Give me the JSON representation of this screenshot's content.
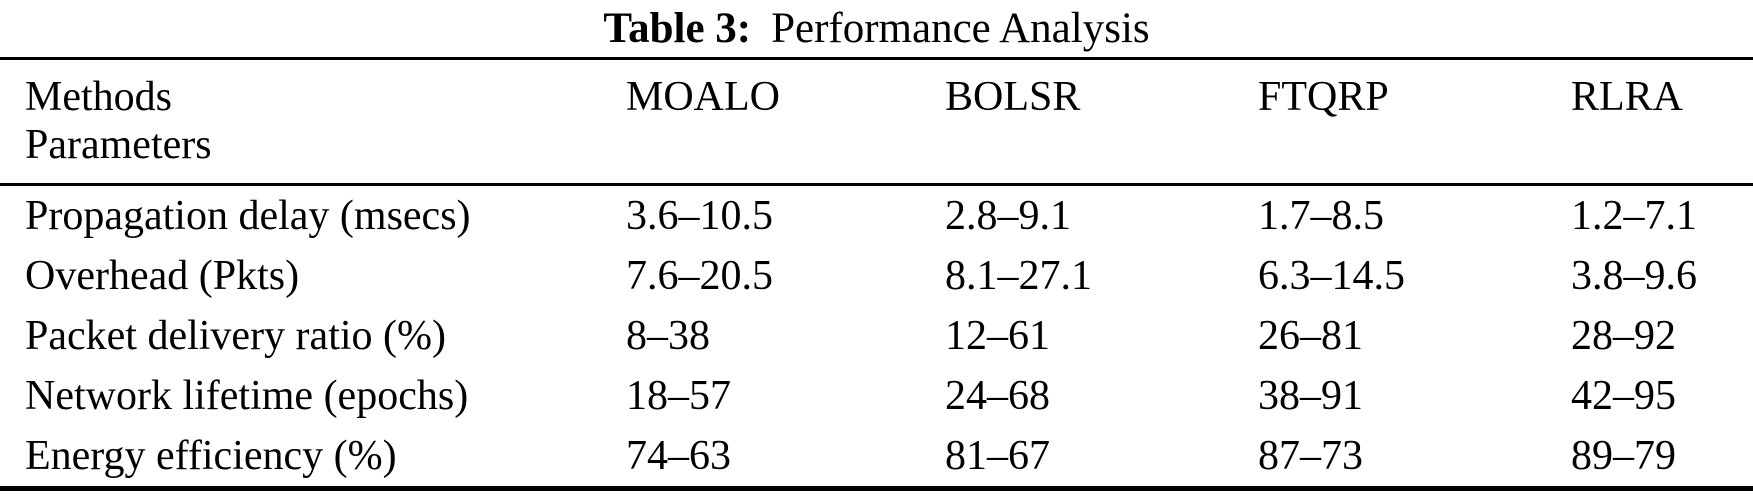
{
  "caption": {
    "label": "Table 3:",
    "title": "Performance Analysis"
  },
  "table": {
    "header": {
      "corner_line1": "Methods",
      "corner_line2": "Parameters",
      "methods": [
        "MOALO",
        "BOLSR",
        "FTQRP",
        "RLRA"
      ]
    },
    "rows": [
      {
        "parameter": "Propagation delay (msecs)",
        "values": [
          "3.6–10.5",
          "2.8–9.1",
          "1.7–8.5",
          "1.2–7.1"
        ]
      },
      {
        "parameter": "Overhead (Pkts)",
        "values": [
          "7.6–20.5",
          "8.1–27.1",
          "6.3–14.5",
          "3.8–9.6"
        ]
      },
      {
        "parameter": "Packet delivery ratio (%)",
        "values": [
          "8–38",
          "12–61",
          "26–81",
          "28–92"
        ]
      },
      {
        "parameter": "Network lifetime (epochs)",
        "values": [
          "18–57",
          "24–68",
          "38–91",
          "42–95"
        ]
      },
      {
        "parameter": "Energy efficiency (%)",
        "values": [
          "74–63",
          "81–67",
          "87–73",
          "89–79"
        ]
      }
    ]
  }
}
